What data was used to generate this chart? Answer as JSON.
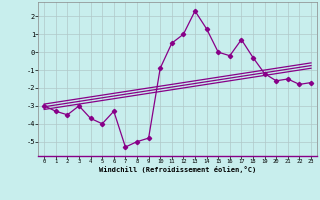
{
  "xlabel": "Windchill (Refroidissement éolien,°C)",
  "background_color": "#c8eeed",
  "grid_color": "#b0c8c8",
  "line_color": "#880088",
  "x_data": [
    0,
    1,
    2,
    3,
    4,
    5,
    6,
    7,
    8,
    9,
    10,
    11,
    12,
    13,
    14,
    15,
    16,
    17,
    18,
    19,
    20,
    21,
    22,
    23
  ],
  "y_main": [
    -3.0,
    -3.3,
    -3.5,
    -3.0,
    -3.7,
    -4.0,
    -3.3,
    -5.3,
    -5.0,
    -4.8,
    -0.9,
    0.5,
    1.0,
    2.3,
    1.3,
    0.0,
    -0.2,
    0.7,
    -0.3,
    -1.2,
    -1.6,
    -1.5,
    -1.8,
    -1.7
  ],
  "y_reg1": [
    -3.05,
    -2.95,
    -2.85,
    -2.75,
    -2.65,
    -2.55,
    -2.45,
    -2.35,
    -2.25,
    -2.15,
    -2.05,
    -1.95,
    -1.85,
    -1.75,
    -1.65,
    -1.55,
    -1.45,
    -1.35,
    -1.25,
    -1.15,
    -1.05,
    -0.95,
    -0.85,
    -0.75
  ],
  "y_reg2": [
    -3.2,
    -3.1,
    -3.0,
    -2.9,
    -2.8,
    -2.7,
    -2.6,
    -2.5,
    -2.4,
    -2.3,
    -2.2,
    -2.1,
    -2.0,
    -1.9,
    -1.8,
    -1.7,
    -1.6,
    -1.5,
    -1.4,
    -1.3,
    -1.2,
    -1.1,
    -1.0,
    -0.9
  ],
  "y_reg3": [
    -2.9,
    -2.8,
    -2.7,
    -2.6,
    -2.5,
    -2.4,
    -2.3,
    -2.2,
    -2.1,
    -2.0,
    -1.9,
    -1.8,
    -1.7,
    -1.6,
    -1.5,
    -1.4,
    -1.3,
    -1.2,
    -1.1,
    -1.0,
    -0.9,
    -0.8,
    -0.7,
    -0.6
  ],
  "ylim": [
    -5.8,
    2.8
  ],
  "xlim": [
    -0.5,
    23.5
  ],
  "yticks": [
    -5,
    -4,
    -3,
    -2,
    -1,
    0,
    1,
    2
  ],
  "xticks": [
    0,
    1,
    2,
    3,
    4,
    5,
    6,
    7,
    8,
    9,
    10,
    11,
    12,
    13,
    14,
    15,
    16,
    17,
    18,
    19,
    20,
    21,
    22,
    23
  ],
  "xtick_labels": [
    "0",
    "1",
    "2",
    "3",
    "4",
    "5",
    "6",
    "7",
    "8",
    "9",
    "10",
    "11",
    "12",
    "13",
    "14",
    "15",
    "16",
    "17",
    "18",
    "19",
    "20",
    "21",
    "22",
    "23"
  ]
}
